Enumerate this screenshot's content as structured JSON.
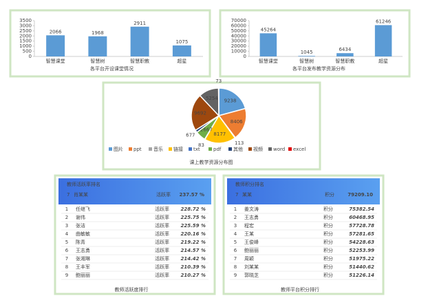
{
  "chart_data": [
    {
      "type": "bar",
      "title": "各平台开设课堂情况",
      "categories": [
        "智慧课堂",
        "智慧树",
        "智慧职教",
        "超星"
      ],
      "values": [
        2066,
        1968,
        2911,
        1075
      ],
      "color": "#5b9bd5",
      "ylim": [
        0,
        3500
      ],
      "yticks": [
        0,
        500,
        1000,
        1500,
        2000,
        2500,
        3000,
        3500
      ],
      "grid": false
    },
    {
      "type": "bar",
      "title": "各平台发布教学资源分布",
      "categories": [
        "智慧课堂",
        "智慧树",
        "智慧职教",
        "超星"
      ],
      "values": [
        45264,
        1045,
        6434,
        61246
      ],
      "color": "#5b9bd5",
      "ylim": [
        0,
        70000
      ],
      "yticks": [
        0,
        10000,
        20000,
        30000,
        40000,
        50000,
        60000,
        70000
      ],
      "grid": false
    },
    {
      "type": "pie",
      "title": "课上教学资源分布图",
      "categories": [
        "图片",
        "ppt",
        "音乐",
        "链接",
        "txt",
        "pdf",
        "其他",
        "视频",
        "word",
        "excel"
      ],
      "values": [
        9238,
        8406,
        113,
        8177,
        83,
        2667,
        677,
        9692,
        5254,
        73
      ],
      "colors": [
        "#5b9bd5",
        "#ed7d31",
        "#a5a5a5",
        "#ffc000",
        "#4472c4",
        "#70ad47",
        "#264478",
        "#9e480e",
        "#636363",
        "#e00000"
      ],
      "legend": "bottom"
    }
  ],
  "rankings": [
    {
      "caption": "教师活跃度排行",
      "header": "教师活跃率排名",
      "metric": "活跃率",
      "me": {
        "rank": "7",
        "name": "肖某某",
        "value": "237.57 %"
      },
      "color": "#3a6fd8",
      "rows": [
        {
          "rank": "1",
          "name": "任继飞",
          "value": "228.72 %"
        },
        {
          "rank": "2",
          "name": "谢伟",
          "value": "225.75 %"
        },
        {
          "rank": "3",
          "name": "张洁",
          "value": "225.59 %"
        },
        {
          "rank": "4",
          "name": "曲敏敏",
          "value": "220.16 %"
        },
        {
          "rank": "5",
          "name": "陈青",
          "value": "219.22 %"
        },
        {
          "rank": "6",
          "name": "王志勇",
          "value": "214.57 %"
        },
        {
          "rank": "7",
          "name": "张湘琳",
          "value": "214.42 %"
        },
        {
          "rank": "8",
          "name": "王丰军",
          "value": "210.39 %"
        },
        {
          "rank": "9",
          "name": "鲍丽丽",
          "value": "210.27 %"
        }
      ]
    },
    {
      "caption": "教师平台积分排行",
      "header": "教师积分排名",
      "metric": "积分",
      "me": {
        "rank": "7",
        "name": "某某",
        "value": "79209.10"
      },
      "color": "#e03030",
      "rows": [
        {
          "rank": "1",
          "name": "姜文涛",
          "value": "75382.54"
        },
        {
          "rank": "2",
          "name": "王志勇",
          "value": "60468.95"
        },
        {
          "rank": "3",
          "name": "程宏",
          "value": "57728.78"
        },
        {
          "rank": "4",
          "name": "王某",
          "value": "57281.65"
        },
        {
          "rank": "5",
          "name": "王俊峰",
          "value": "54228.63"
        },
        {
          "rank": "6",
          "name": "鲍丽丽",
          "value": "52253.99"
        },
        {
          "rank": "7",
          "name": "周颖",
          "value": "51975.22"
        },
        {
          "rank": "8",
          "name": "刘某某",
          "value": "51440.62"
        },
        {
          "rank": "9",
          "name": "郭晓芝",
          "value": "51226.14"
        }
      ]
    }
  ]
}
